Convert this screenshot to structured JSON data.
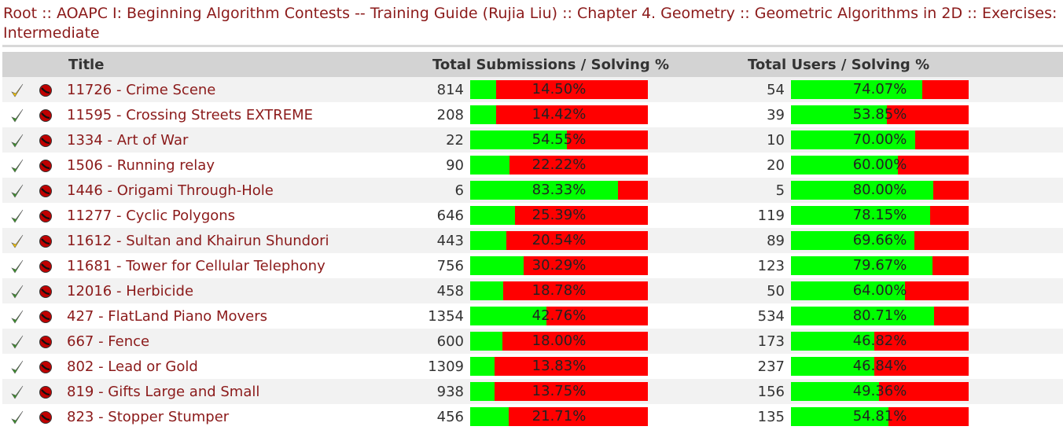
{
  "breadcrumb": {
    "items": [
      "Root",
      "AOAPC I: Beginning Algorithm Contests -- Training Guide (Rujia Liu)",
      "Chapter 4. Geometry",
      "Geometric Algorithms in 2D",
      "Exercises: Intermediate"
    ],
    "separator": "::"
  },
  "header": {
    "title": "Title",
    "submissions": "Total Submissions / Solving %",
    "users": "Total Users / Solving %"
  },
  "colors": {
    "solved": "#00ff00",
    "unsolved": "#ff0000",
    "link": "#8b1a1a"
  },
  "rows": [
    {
      "status": "check-yellow-icon",
      "title": "11726 - Crime Scene",
      "subs": "814",
      "subs_pct": "14.50%",
      "subs_frac": 0.145,
      "users": "54",
      "users_pct": "74.07%",
      "users_frac": 0.7407
    },
    {
      "status": "check-green-icon",
      "title": "11595 - Crossing Streets EXTREME",
      "subs": "208",
      "subs_pct": "14.42%",
      "subs_frac": 0.1442,
      "users": "39",
      "users_pct": "53.85%",
      "users_frac": 0.5385
    },
    {
      "status": "check-green-icon",
      "title": "1334 - Art of War",
      "subs": "22",
      "subs_pct": "54.55%",
      "subs_frac": 0.5455,
      "users": "10",
      "users_pct": "70.00%",
      "users_frac": 0.7
    },
    {
      "status": "check-green-icon",
      "title": "1506 - Running relay",
      "subs": "90",
      "subs_pct": "22.22%",
      "subs_frac": 0.2222,
      "users": "20",
      "users_pct": "60.00%",
      "users_frac": 0.6
    },
    {
      "status": "check-green-icon",
      "title": "1446 - Origami Through-Hole",
      "subs": "6",
      "subs_pct": "83.33%",
      "subs_frac": 0.8333,
      "users": "5",
      "users_pct": "80.00%",
      "users_frac": 0.8
    },
    {
      "status": "check-green-icon",
      "title": "11277 - Cyclic Polygons",
      "subs": "646",
      "subs_pct": "25.39%",
      "subs_frac": 0.2539,
      "users": "119",
      "users_pct": "78.15%",
      "users_frac": 0.7815
    },
    {
      "status": "check-yellow-icon",
      "title": "11612 - Sultan and Khairun Shundori",
      "subs": "443",
      "subs_pct": "20.54%",
      "subs_frac": 0.2054,
      "users": "89",
      "users_pct": "69.66%",
      "users_frac": 0.6966
    },
    {
      "status": "check-green-icon",
      "title": "11681 - Tower for Cellular Telephony",
      "subs": "756",
      "subs_pct": "30.29%",
      "subs_frac": 0.3029,
      "users": "123",
      "users_pct": "79.67%",
      "users_frac": 0.7967
    },
    {
      "status": "check-green-icon",
      "title": "12016 - Herbicide",
      "subs": "458",
      "subs_pct": "18.78%",
      "subs_frac": 0.1878,
      "users": "50",
      "users_pct": "64.00%",
      "users_frac": 0.64
    },
    {
      "status": "check-green-icon",
      "title": "427 - FlatLand Piano Movers",
      "subs": "1354",
      "subs_pct": "42.76%",
      "subs_frac": 0.4276,
      "users": "534",
      "users_pct": "80.71%",
      "users_frac": 0.8071
    },
    {
      "status": "check-green-icon",
      "title": "667 - Fence",
      "subs": "600",
      "subs_pct": "18.00%",
      "subs_frac": 0.18,
      "users": "173",
      "users_pct": "46.82%",
      "users_frac": 0.4682
    },
    {
      "status": "check-green-icon",
      "title": "802 - Lead or Gold",
      "subs": "1309",
      "subs_pct": "13.83%",
      "subs_frac": 0.1383,
      "users": "237",
      "users_pct": "46.84%",
      "users_frac": 0.4684
    },
    {
      "status": "check-green-icon",
      "title": "819 - Gifts Large and Small",
      "subs": "938",
      "subs_pct": "13.75%",
      "subs_frac": 0.1375,
      "users": "156",
      "users_pct": "49.36%",
      "users_frac": 0.4936
    },
    {
      "status": "check-green-icon",
      "title": "823 - Stopper Stumper",
      "subs": "456",
      "subs_pct": "21.71%",
      "subs_frac": 0.2171,
      "users": "135",
      "users_pct": "54.81%",
      "users_frac": 0.5481
    }
  ]
}
